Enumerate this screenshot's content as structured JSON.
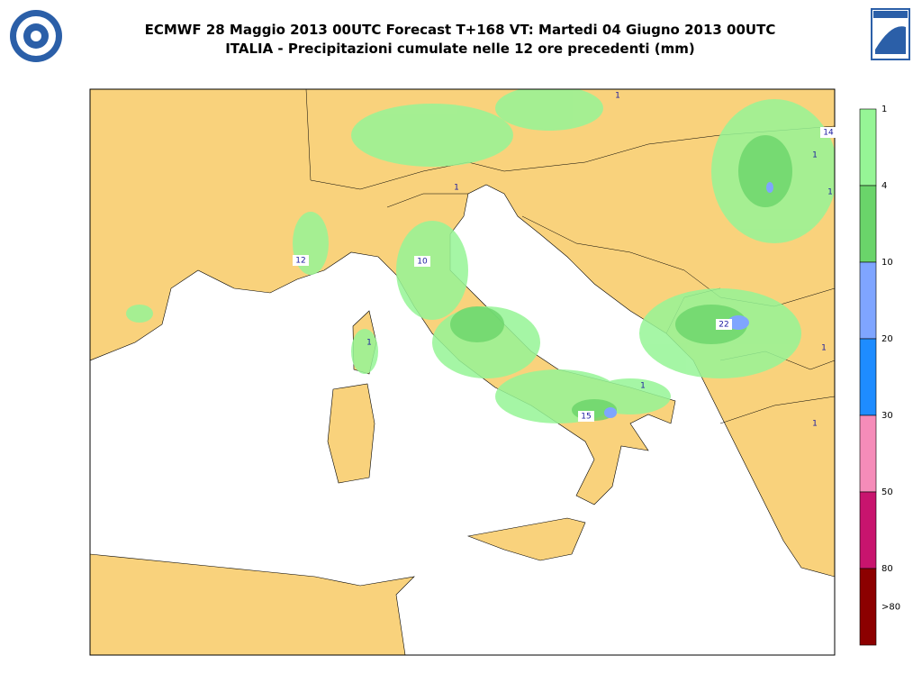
{
  "header": {
    "title_line1": "ECMWF 28 Maggio 2013 00UTC Forecast T+168 VT: Martedi 04 Giugno 2013 00UTC",
    "title_line2": "ITALIA - Precipitazioni cumulate nelle 12 ore precedenti (mm)"
  },
  "legend": {
    "labels": [
      "1",
      "4",
      "10",
      "20",
      "30",
      "50",
      "80",
      ">80"
    ],
    "colors": [
      "#96f596",
      "#6ad46a",
      "#7fa5ff",
      "#1e8cff",
      "#f58cb9",
      "#c8146e",
      "#8c0000"
    ]
  },
  "map_labels": [
    "12",
    "10",
    "22",
    "15",
    "14",
    "1",
    "1",
    "1",
    "1",
    "1",
    "1",
    "1",
    "1"
  ]
}
